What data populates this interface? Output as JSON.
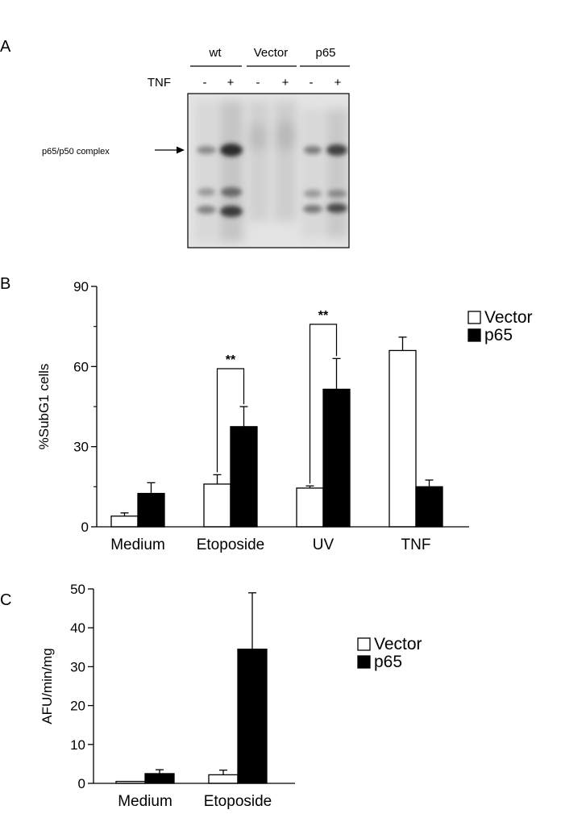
{
  "panel_a": {
    "letter": "A",
    "groups": [
      {
        "label": "wt",
        "lanes": [
          "-",
          "+"
        ]
      },
      {
        "label": "Vector",
        "lanes": [
          "-",
          "+"
        ]
      },
      {
        "label": "p65",
        "lanes": [
          "-",
          "+"
        ]
      }
    ],
    "row_label": "TNF",
    "band_label": "p65/p50 complex"
  },
  "chart_data": [
    {
      "panel": "B",
      "type": "bar",
      "categories": [
        "Medium",
        "Etoposide",
        "UV",
        "TNF"
      ],
      "series": [
        {
          "name": "Vector",
          "values": [
            4,
            16,
            14.5,
            66
          ],
          "errors": [
            1.2,
            3.5,
            0.8,
            5
          ],
          "color": "#ffffff"
        },
        {
          "name": "p65",
          "values": [
            12.5,
            37.5,
            51.5,
            15
          ],
          "errors": [
            4,
            7.5,
            11.5,
            2.5
          ],
          "color": "#000000"
        }
      ],
      "ylabel": "%SubG1 cells",
      "ylim": [
        0,
        90
      ],
      "yticks": [
        "0",
        "30",
        "60",
        "90"
      ],
      "significance": [
        {
          "category": "Etoposide",
          "label": "**"
        },
        {
          "category": "UV",
          "label": "**"
        }
      ],
      "legend_position": "top-right"
    },
    {
      "panel": "C",
      "type": "bar",
      "categories": [
        "Medium",
        "Etoposide"
      ],
      "series": [
        {
          "name": "Vector",
          "values": [
            0.5,
            2.2
          ],
          "errors": [
            0,
            1.2
          ],
          "color": "#ffffff"
        },
        {
          "name": "p65",
          "values": [
            2.5,
            34.5
          ],
          "errors": [
            1,
            14.5
          ],
          "color": "#000000"
        }
      ],
      "ylabel": "AFU/min/mg",
      "ylim": [
        0,
        50
      ],
      "yticks": [
        "0",
        "10",
        "20",
        "30",
        "40",
        "50"
      ],
      "legend_position": "top-right"
    }
  ]
}
